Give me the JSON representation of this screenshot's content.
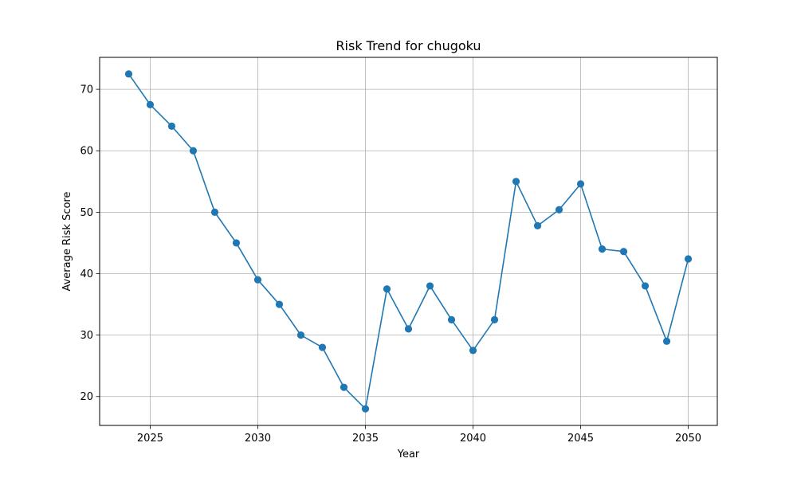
{
  "chart_data": {
    "type": "line",
    "title": "Risk Trend for chugoku",
    "xlabel": "Year",
    "ylabel": "Average Risk Score",
    "xlim": [
      2022.65,
      2051.35
    ],
    "ylim": [
      15.3,
      75.2
    ],
    "x_ticks": [
      2025,
      2030,
      2035,
      2040,
      2045,
      2050
    ],
    "y_ticks": [
      20,
      30,
      40,
      50,
      60,
      70
    ],
    "x_tick_labels": [
      "2025",
      "2030",
      "2035",
      "2040",
      "2045",
      "2050"
    ],
    "y_tick_labels": [
      "20",
      "30",
      "40",
      "50",
      "60",
      "70"
    ],
    "grid": true,
    "series": [
      {
        "color": "#1f77b4",
        "marker": "circle",
        "x": [
          2024,
          2025,
          2026,
          2027,
          2028,
          2029,
          2030,
          2031,
          2032,
          2033,
          2034,
          2035,
          2036,
          2037,
          2038,
          2039,
          2040,
          2041,
          2042,
          2043,
          2044,
          2045,
          2046,
          2047,
          2048,
          2049,
          2050
        ],
        "y": [
          72.5,
          67.5,
          64.0,
          60.0,
          50.0,
          45.0,
          39.0,
          35.0,
          30.0,
          28.0,
          21.5,
          18.0,
          37.5,
          31.0,
          38.0,
          32.5,
          27.5,
          32.5,
          55.0,
          47.8,
          50.4,
          54.6,
          44.0,
          43.6,
          38.0,
          29.0,
          42.4
        ]
      }
    ]
  }
}
